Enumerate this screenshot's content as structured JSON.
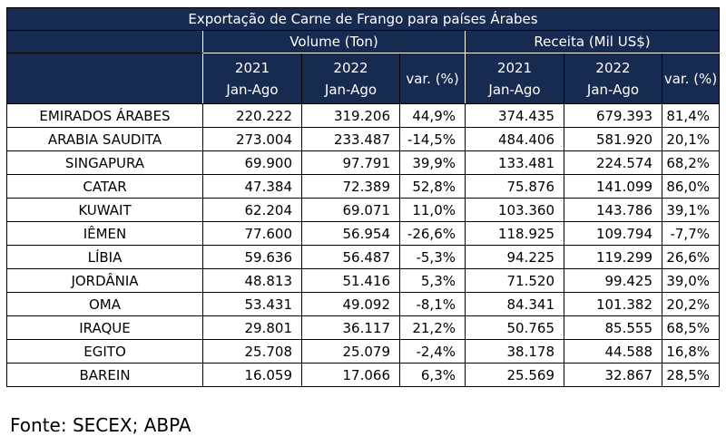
{
  "table": {
    "title": "Exportação de Carne de Frango para países Árabes",
    "groups": {
      "volume": "Volume (Ton)",
      "receita": "Receita (Mil US$)"
    },
    "columns": {
      "y2021": "2021",
      "y2022": "2022",
      "period": "Jan-Ago",
      "var": "var. (%)"
    },
    "rows": [
      {
        "country": "EMIRADOS ÁRABES",
        "vol_2021": "220.222",
        "vol_2022": "319.206",
        "vol_var": "44,9%",
        "rec_2021": "374.435",
        "rec_2022": "679.393",
        "rec_var": "81,4%"
      },
      {
        "country": "ARABIA SAUDITA",
        "vol_2021": "273.004",
        "vol_2022": "233.487",
        "vol_var": "-14,5%",
        "rec_2021": "484.406",
        "rec_2022": "581.920",
        "rec_var": "20,1%"
      },
      {
        "country": "SINGAPURA",
        "vol_2021": "69.900",
        "vol_2022": "97.791",
        "vol_var": "39,9%",
        "rec_2021": "133.481",
        "rec_2022": "224.574",
        "rec_var": "68,2%"
      },
      {
        "country": "CATAR",
        "vol_2021": "47.384",
        "vol_2022": "72.389",
        "vol_var": "52,8%",
        "rec_2021": "75.876",
        "rec_2022": "141.099",
        "rec_var": "86,0%"
      },
      {
        "country": "KUWAIT",
        "vol_2021": "62.204",
        "vol_2022": "69.071",
        "vol_var": "11,0%",
        "rec_2021": "103.360",
        "rec_2022": "143.786",
        "rec_var": "39,1%"
      },
      {
        "country": "IÊMEN",
        "vol_2021": "77.600",
        "vol_2022": "56.954",
        "vol_var": "-26,6%",
        "rec_2021": "118.925",
        "rec_2022": "109.794",
        "rec_var": "-7,7%"
      },
      {
        "country": "LÍBIA",
        "vol_2021": "59.636",
        "vol_2022": "56.487",
        "vol_var": "-5,3%",
        "rec_2021": "94.225",
        "rec_2022": "119.299",
        "rec_var": "26,6%"
      },
      {
        "country": "JORDÂNIA",
        "vol_2021": "48.813",
        "vol_2022": "51.416",
        "vol_var": "5,3%",
        "rec_2021": "71.520",
        "rec_2022": "99.425",
        "rec_var": "39,0%"
      },
      {
        "country": "OMA",
        "vol_2021": "53.431",
        "vol_2022": "49.092",
        "vol_var": "-8,1%",
        "rec_2021": "84.341",
        "rec_2022": "101.382",
        "rec_var": "20,2%"
      },
      {
        "country": "IRAQUE",
        "vol_2021": "29.801",
        "vol_2022": "36.117",
        "vol_var": "21,2%",
        "rec_2021": "50.765",
        "rec_2022": "85.555",
        "rec_var": "68,5%"
      },
      {
        "country": "EGITO",
        "vol_2021": "25.708",
        "vol_2022": "25.079",
        "vol_var": "-2,4%",
        "rec_2021": "38.178",
        "rec_2022": "44.588",
        "rec_var": "16,8%"
      },
      {
        "country": "BAREIN",
        "vol_2021": "16.059",
        "vol_2022": "17.066",
        "vol_var": "6,3%",
        "rec_2021": "25.569",
        "rec_2022": "32.867",
        "rec_var": "28,5%"
      }
    ]
  },
  "source": "Fonte: SECEX; ABPA",
  "colors": {
    "header_bg": "#172a4f",
    "header_text": "#ffffff",
    "border": "#000000"
  }
}
